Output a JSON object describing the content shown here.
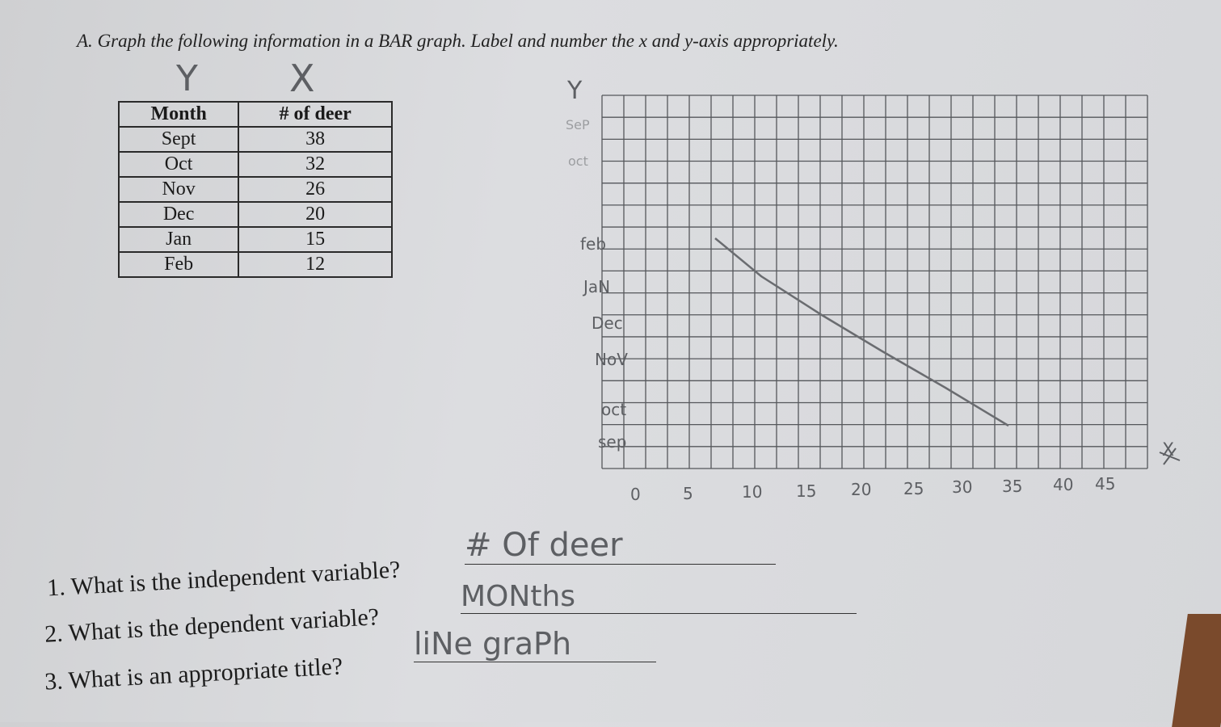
{
  "instruction": {
    "label": "A.",
    "text": "Graph the following information in a BAR graph. Label and number the x and y-axis appropriately."
  },
  "table_annotations": [
    "Y",
    "X"
  ],
  "table": {
    "header": [
      "Month",
      "# of deer"
    ],
    "rows": [
      [
        "Sept",
        "38"
      ],
      [
        "Oct",
        "32"
      ],
      [
        "Nov",
        "26"
      ],
      [
        "Dec",
        "20"
      ],
      [
        "Jan",
        "15"
      ],
      [
        "Feb",
        "12"
      ]
    ]
  },
  "graph": {
    "y_axis_label": "Y",
    "x_axis_label": "X",
    "crossed_out_labels": [
      "SeP",
      "oct"
    ],
    "y_labels": [
      "feb",
      "JaN",
      "Dec",
      "NoV",
      "oct",
      "sep"
    ],
    "x_labels": [
      "0",
      "5",
      "10",
      "15",
      "20",
      "25",
      "30",
      "35",
      "40",
      "45"
    ]
  },
  "questions": [
    {
      "text": "1. What is the independent variable?",
      "answer": "# Of deer"
    },
    {
      "text": "2. What is the dependent variable?",
      "answer": "MONths"
    },
    {
      "text": "3. What is an appropriate title?",
      "answer": "liNe graPh"
    }
  ]
}
